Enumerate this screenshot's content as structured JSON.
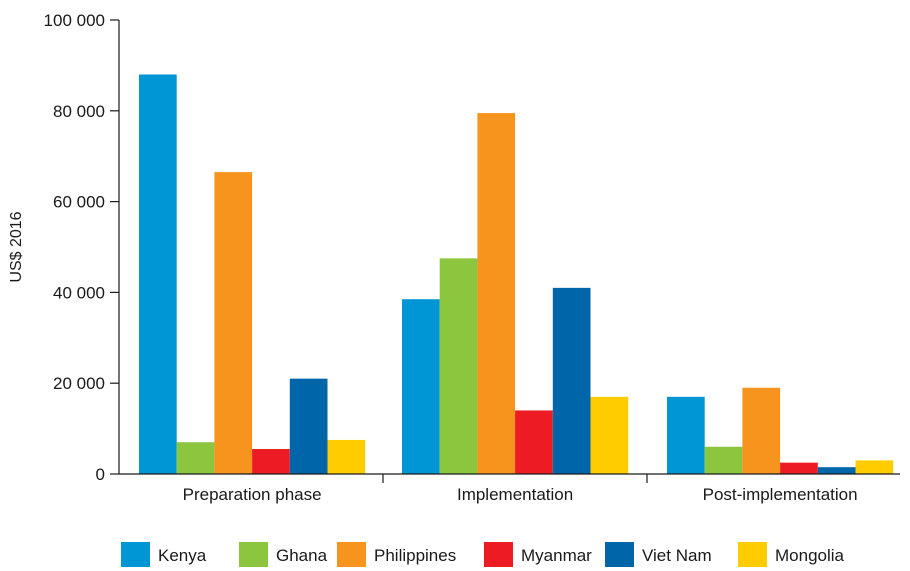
{
  "chart_data": {
    "type": "bar",
    "categories": [
      "Preparation phase",
      "Implementation",
      "Post-implementation"
    ],
    "series": [
      {
        "name": "Kenya",
        "color": "#0096d6",
        "values": [
          88000,
          38500,
          17000
        ]
      },
      {
        "name": "Ghana",
        "color": "#8cc63f",
        "values": [
          7000,
          47500,
          6000
        ]
      },
      {
        "name": "Philippines",
        "color": "#f7941d",
        "values": [
          66500,
          79500,
          19000
        ]
      },
      {
        "name": "Myanmar",
        "color": "#ed1c24",
        "values": [
          5500,
          14000,
          2500
        ]
      },
      {
        "name": "Viet Nam",
        "color": "#0066a9",
        "values": [
          21000,
          41000,
          1500
        ]
      },
      {
        "name": "Mongolia",
        "color": "#ffcc00",
        "values": [
          7500,
          17000,
          3000
        ]
      }
    ],
    "ylabel": "US$ 2016",
    "ylim": [
      0,
      100000
    ],
    "yticks": [
      0,
      20000,
      40000,
      60000,
      80000,
      100000
    ],
    "ytick_labels": [
      "0",
      "20 000",
      "40 000",
      "60 000",
      "80 000",
      "100 000"
    ],
    "grid": false,
    "legend_position": "bottom"
  }
}
